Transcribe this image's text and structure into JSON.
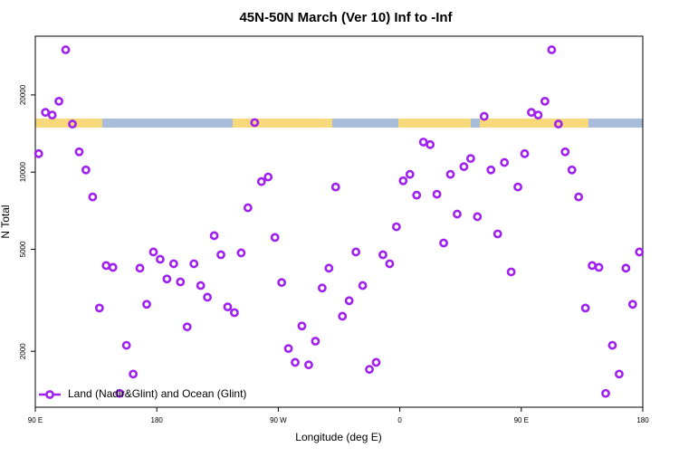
{
  "chart_data": {
    "type": "scatter",
    "title": "45N-50N March (Ver 10)   Inf to -Inf",
    "xlabel": "Longitude (deg E)",
    "ylabel": "N Total",
    "x": [
      92.5,
      97.5,
      102.5,
      107.5,
      112.5,
      117.5,
      122.5,
      127.5,
      132.5,
      137.5,
      142.5,
      147.5,
      152.5,
      157.5,
      162.5,
      167.5,
      172.5,
      177.5,
      182.5,
      187.5,
      192.5,
      197.5,
      202.5,
      207.5,
      212.5,
      217.5,
      222.5,
      227.5,
      232.5,
      237.5,
      242.5,
      247.5,
      252.5,
      257.5,
      262.5,
      267.5,
      272.5,
      277.5,
      282.5,
      287.5,
      292.5,
      297.5,
      302.5,
      307.5,
      312.5,
      317.5,
      322.5,
      327.5,
      332.5,
      337.5,
      342.5,
      347.5,
      352.5,
      357.5,
      362.5,
      367.5,
      372.5,
      377.5,
      382.5,
      387.5,
      392.5,
      397.5,
      402.5,
      407.5,
      412.5,
      417.5,
      422.5,
      427.5,
      432.5,
      437.5,
      442.5,
      447.5,
      452.5,
      457.5,
      462.5,
      467.5,
      472.5,
      477.5,
      482.5,
      487.5,
      492.5,
      497.5,
      502.5,
      507.5,
      512.5,
      517.5,
      522.5,
      527.5,
      532.5,
      537.5
    ],
    "series": [
      {
        "name": "Land (Nadir&Glint) and Ocean (Glint)",
        "color": "#a020f0",
        "values": [
          11800,
          17100,
          16700,
          18900,
          30000,
          15400,
          12000,
          10200,
          8000,
          2950,
          4320,
          4250,
          1370,
          2110,
          1630,
          4220,
          3050,
          4880,
          4570,
          3830,
          4390,
          3730,
          2490,
          4390,
          3610,
          3250,
          5650,
          4760,
          2980,
          2830,
          4840,
          7260,
          15600,
          9180,
          9570,
          5560,
          3710,
          2050,
          1810,
          2510,
          1770,
          2190,
          3530,
          4220,
          8750,
          2740,
          3150,
          4880,
          3610,
          1700,
          1810,
          4760,
          4390,
          6120,
          9250,
          9800,
          8130,
          13100,
          12800,
          8200,
          5290,
          9800,
          6860,
          10500,
          11300,
          6700,
          16500,
          10200,
          5740,
          10900,
          4080,
          8750,
          11800,
          17100,
          16700,
          18900,
          30000,
          15400,
          12000,
          10200,
          8000,
          2950,
          4320,
          4250,
          1370,
          2110,
          1630,
          4220,
          3050,
          4880
        ]
      }
    ],
    "xlim": [
      90,
      540
    ],
    "xticks": [
      {
        "value": 90,
        "label": "90 E"
      },
      180,
      {
        "value": 270,
        "label": "90 W"
      },
      {
        "value": 360,
        "label": "0"
      },
      {
        "value": 450,
        "label": "90 E"
      },
      {
        "value": 540,
        "label": "180"
      }
    ],
    "ylim": [
      1210,
      33900
    ],
    "yticks": [
      2000,
      5000,
      10000,
      20000
    ],
    "log_y": true,
    "legend": "bottom-left"
  }
}
